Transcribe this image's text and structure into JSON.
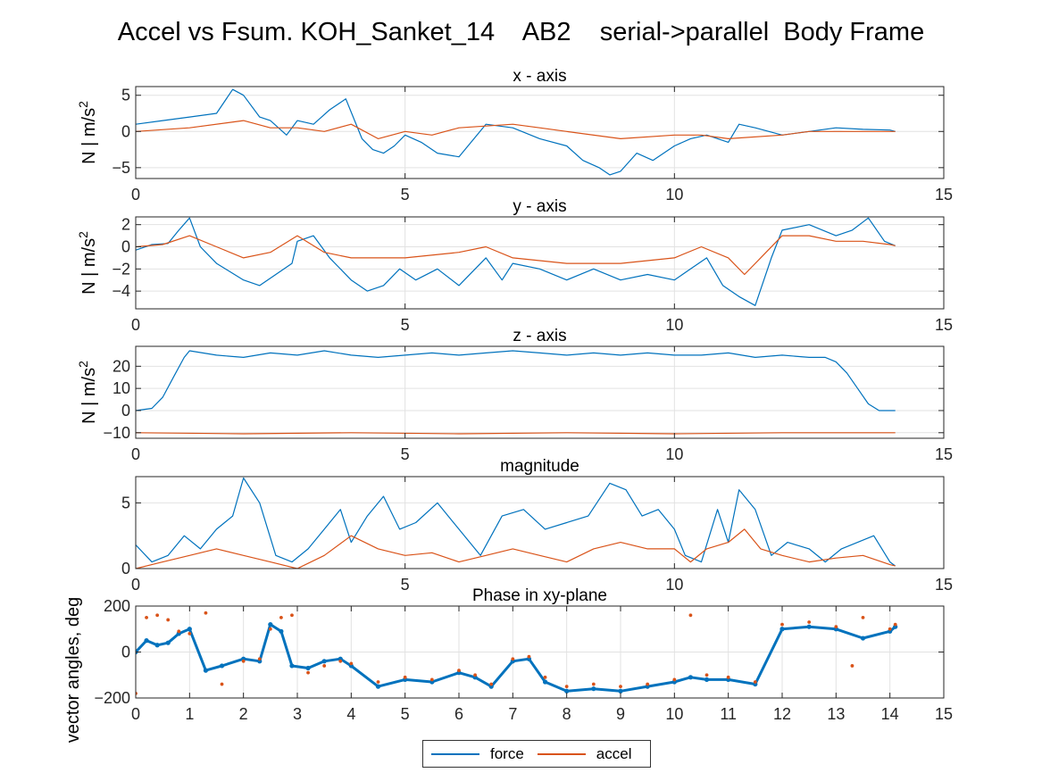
{
  "figure": {
    "title": "Accel vs Fsum. KOH_Sanket_14    AB2    serial->parallel  Body Frame"
  },
  "colors": {
    "force": "#0072bd",
    "accel": "#d95319",
    "grid": "#e2e2e2",
    "axis": "#262626"
  },
  "legend": [
    {
      "name": "force",
      "color": "#0072bd"
    },
    {
      "name": "accel",
      "color": "#d95319"
    }
  ],
  "chart_data": [
    {
      "type": "line",
      "title": "x - axis",
      "ylabel": "N | m/s^2",
      "xlim": [
        0,
        15
      ],
      "ylim": [
        -6.5,
        6.2
      ],
      "xticks": [
        0,
        5,
        10,
        15
      ],
      "yticks": [
        -5,
        0,
        5
      ],
      "grid": true,
      "series": [
        {
          "name": "force",
          "x": [
            0,
            0.5,
            1,
            1.5,
            1.8,
            2,
            2.3,
            2.5,
            2.8,
            3,
            3.3,
            3.6,
            3.9,
            4.2,
            4.4,
            4.6,
            4.8,
            5,
            5.3,
            5.6,
            6,
            6.5,
            7,
            7.5,
            8,
            8.3,
            8.6,
            8.8,
            9,
            9.3,
            9.6,
            10,
            10.3,
            10.6,
            11,
            11.2,
            11.5,
            12,
            12.5,
            13,
            13.5,
            14,
            14.1
          ],
          "y": [
            1.0,
            1.5,
            2.0,
            2.5,
            5.8,
            5.0,
            2.0,
            1.5,
            -0.5,
            1.5,
            1.0,
            3.0,
            4.5,
            -1.0,
            -2.5,
            -3.0,
            -2.0,
            -0.5,
            -1.5,
            -3.0,
            -3.5,
            1.0,
            0.5,
            -1.0,
            -2.0,
            -4.0,
            -5.0,
            -6.0,
            -5.5,
            -3.0,
            -4.0,
            -2.0,
            -1.0,
            -0.5,
            -1.5,
            1.0,
            0.5,
            -0.5,
            0.0,
            0.5,
            0.3,
            0.2,
            0.0
          ]
        },
        {
          "name": "accel",
          "x": [
            0,
            1,
            2,
            2.5,
            3,
            3.5,
            4,
            4.5,
            5,
            5.5,
            6,
            7,
            7.5,
            8,
            9,
            10,
            10.5,
            11,
            12,
            12.5,
            13,
            13.5,
            14,
            14.1
          ],
          "y": [
            0,
            0.5,
            1.5,
            0.5,
            0.5,
            0,
            1.0,
            -1.0,
            0,
            -0.5,
            0.5,
            1.0,
            0.5,
            0,
            -1.0,
            -0.5,
            -0.5,
            -1.0,
            -0.5,
            0,
            0,
            0,
            0,
            0
          ]
        }
      ]
    },
    {
      "type": "line",
      "title": "y - axis",
      "ylabel": "N | m/s^2",
      "xlim": [
        0,
        15
      ],
      "ylim": [
        -5.6,
        2.7
      ],
      "xticks": [
        0,
        5,
        10,
        15
      ],
      "yticks": [
        -4,
        -2,
        0,
        2
      ],
      "grid": true,
      "series": [
        {
          "name": "force",
          "x": [
            0,
            0.3,
            0.6,
            0.8,
            1,
            1.2,
            1.5,
            2,
            2.3,
            2.6,
            2.9,
            3,
            3.3,
            3.6,
            4,
            4.3,
            4.6,
            4.9,
            5.2,
            5.6,
            6,
            6.5,
            6.8,
            7,
            7.5,
            8,
            8.5,
            9,
            9.5,
            10,
            10.3,
            10.6,
            10.9,
            11.2,
            11.5,
            11.8,
            12,
            12.5,
            13,
            13.3,
            13.6,
            13.9,
            14.1
          ],
          "y": [
            -0.3,
            0.2,
            0.3,
            1.5,
            2.6,
            0,
            -1.5,
            -3.0,
            -3.5,
            -2.5,
            -1.5,
            0.5,
            1.0,
            -1.0,
            -3.0,
            -4.0,
            -3.5,
            -2.0,
            -3.0,
            -2.0,
            -3.5,
            -1.0,
            -3.0,
            -1.5,
            -2.0,
            -3.0,
            -2.0,
            -3.0,
            -2.5,
            -3.0,
            -2.0,
            -1.0,
            -3.5,
            -4.5,
            -5.3,
            -1.0,
            1.5,
            2.0,
            1.0,
            1.5,
            2.6,
            0.5,
            0.1
          ]
        },
        {
          "name": "accel",
          "x": [
            0,
            0.5,
            1,
            1.5,
            2,
            2.5,
            3,
            3.5,
            4,
            5,
            6,
            6.5,
            7,
            8,
            9,
            10,
            10.5,
            11,
            11.3,
            11.6,
            12,
            12.5,
            13,
            13.5,
            14,
            14.1
          ],
          "y": [
            0,
            0.2,
            1.0,
            0,
            -1.0,
            -0.5,
            1.0,
            -0.5,
            -1.0,
            -1.0,
            -0.5,
            0,
            -1.0,
            -1.5,
            -1.5,
            -1.0,
            0,
            -1.0,
            -2.5,
            -1.0,
            1.0,
            1.0,
            0.5,
            0.5,
            0.2,
            0.1
          ]
        }
      ]
    },
    {
      "type": "line",
      "title": "z - axis",
      "ylabel": "N | m/s^2",
      "xlim": [
        0,
        15
      ],
      "ylim": [
        -12.5,
        29
      ],
      "xticks": [
        0,
        5,
        10,
        15
      ],
      "yticks": [
        -10,
        0,
        10,
        20
      ],
      "grid": true,
      "series": [
        {
          "name": "force",
          "x": [
            0,
            0.3,
            0.5,
            0.7,
            0.9,
            1,
            1.5,
            2,
            2.5,
            3,
            3.5,
            4,
            4.5,
            5,
            5.5,
            6,
            6.5,
            7,
            7.5,
            8,
            8.5,
            9,
            9.5,
            10,
            10.5,
            11,
            11.5,
            12,
            12.5,
            12.8,
            13,
            13.2,
            13.4,
            13.6,
            13.8,
            14,
            14.1
          ],
          "y": [
            0,
            1,
            6,
            15,
            24,
            27,
            25,
            24,
            26,
            25,
            27,
            25,
            24,
            25,
            26,
            25,
            26,
            27,
            26,
            25,
            26,
            25,
            26,
            25,
            25,
            26,
            24,
            25,
            24,
            24,
            22,
            17,
            10,
            3,
            0,
            0,
            0
          ]
        },
        {
          "name": "accel",
          "x": [
            0,
            2,
            4,
            6,
            8,
            10,
            12,
            14.1
          ],
          "y": [
            -10,
            -10.5,
            -10,
            -10.5,
            -10,
            -10.5,
            -10,
            -10
          ]
        }
      ]
    },
    {
      "type": "line",
      "title": "magnitude",
      "ylabel": "",
      "xlim": [
        0,
        15
      ],
      "ylim": [
        0,
        7
      ],
      "xticks": [
        0,
        5,
        10,
        15
      ],
      "yticks": [
        0,
        5
      ],
      "grid": true,
      "series": [
        {
          "name": "force",
          "x": [
            0,
            0.3,
            0.6,
            0.9,
            1.2,
            1.5,
            1.8,
            2,
            2.3,
            2.6,
            2.9,
            3.2,
            3.5,
            3.8,
            4,
            4.3,
            4.6,
            4.9,
            5.2,
            5.6,
            6,
            6.4,
            6.8,
            7.2,
            7.6,
            8,
            8.4,
            8.8,
            9.1,
            9.4,
            9.7,
            10,
            10.2,
            10.5,
            10.8,
            11,
            11.2,
            11.5,
            11.8,
            12.1,
            12.5,
            12.8,
            13.1,
            13.4,
            13.7,
            14,
            14.1
          ],
          "y": [
            1.8,
            0.5,
            1.0,
            2.5,
            1.5,
            3.0,
            4.0,
            6.9,
            5.0,
            1.0,
            0.5,
            1.5,
            3.0,
            4.5,
            2.0,
            4.0,
            5.5,
            3.0,
            3.5,
            5.0,
            3.0,
            1.0,
            4.0,
            4.5,
            3.0,
            3.5,
            4.0,
            6.5,
            6.0,
            4.0,
            4.5,
            3.0,
            1.0,
            0.5,
            4.5,
            2.0,
            6.0,
            4.5,
            1.0,
            2.0,
            1.5,
            0.5,
            1.5,
            2.0,
            2.5,
            0.5,
            0.2
          ]
        },
        {
          "name": "accel",
          "x": [
            0,
            0.5,
            1,
            1.5,
            2,
            2.5,
            3,
            3.5,
            4,
            4.5,
            5,
            5.5,
            6,
            6.5,
            7,
            7.5,
            8,
            8.5,
            9,
            9.5,
            10,
            10.3,
            10.6,
            11,
            11.3,
            11.6,
            12,
            12.5,
            13,
            13.5,
            14,
            14.1
          ],
          "y": [
            0,
            0.5,
            1.0,
            1.5,
            1.0,
            0.5,
            0,
            1.0,
            2.5,
            1.5,
            1.0,
            1.2,
            0.5,
            1.0,
            1.5,
            1.0,
            0.5,
            1.5,
            2.0,
            1.5,
            1.5,
            0.5,
            1.5,
            2.0,
            3.0,
            1.5,
            1.0,
            0.5,
            0.8,
            1.0,
            0.3,
            0.2
          ]
        }
      ]
    },
    {
      "type": "scatter",
      "title": "Phase in xy-plane",
      "ylabel": "vector angles, deg",
      "xlim": [
        0,
        15
      ],
      "ylim": [
        -200,
        200
      ],
      "xticks": [
        0,
        1,
        2,
        3,
        4,
        5,
        6,
        7,
        8,
        9,
        10,
        11,
        12,
        13,
        14,
        15
      ],
      "yticks": [
        -200,
        0,
        200
      ],
      "grid": true,
      "series": [
        {
          "name": "force",
          "x": [
            0,
            0.2,
            0.4,
            0.6,
            0.8,
            1,
            1.3,
            1.6,
            2,
            2.3,
            2.5,
            2.7,
            2.9,
            3.2,
            3.5,
            3.8,
            4,
            4.5,
            5,
            5.5,
            6,
            6.3,
            6.6,
            7,
            7.3,
            7.6,
            8,
            8.5,
            9,
            9.5,
            10,
            10.3,
            10.6,
            11,
            11.5,
            12,
            12.5,
            13,
            13.5,
            14,
            14.1
          ],
          "y": [
            0,
            50,
            30,
            40,
            80,
            100,
            -80,
            -60,
            -30,
            -40,
            120,
            90,
            -60,
            -70,
            -40,
            -30,
            -60,
            -150,
            -120,
            -130,
            -90,
            -110,
            -150,
            -40,
            -30,
            -130,
            -170,
            -160,
            -170,
            -150,
            -130,
            -110,
            -120,
            -120,
            -140,
            100,
            110,
            100,
            60,
            90,
            110
          ]
        },
        {
          "name": "accel",
          "x": [
            0,
            0.2,
            0.4,
            0.6,
            0.8,
            1,
            1.3,
            1.6,
            2,
            2.3,
            2.5,
            2.7,
            2.9,
            3.2,
            3.5,
            3.8,
            4,
            4.5,
            5,
            5.5,
            6,
            6.3,
            6.6,
            7,
            7.3,
            7.6,
            8,
            8.5,
            9,
            9.5,
            10,
            10.3,
            10.6,
            11,
            11.5,
            12,
            12.5,
            13,
            13.3,
            13.5,
            14,
            14.1
          ],
          "y": [
            -180,
            150,
            160,
            140,
            90,
            80,
            170,
            -140,
            -40,
            -30,
            100,
            150,
            160,
            -90,
            -60,
            -40,
            -50,
            -130,
            -110,
            -120,
            -80,
            -100,
            -140,
            -30,
            -20,
            -110,
            -150,
            -140,
            -150,
            -140,
            -120,
            160,
            -100,
            -110,
            -130,
            120,
            130,
            110,
            -60,
            150,
            100,
            120
          ]
        }
      ]
    }
  ]
}
